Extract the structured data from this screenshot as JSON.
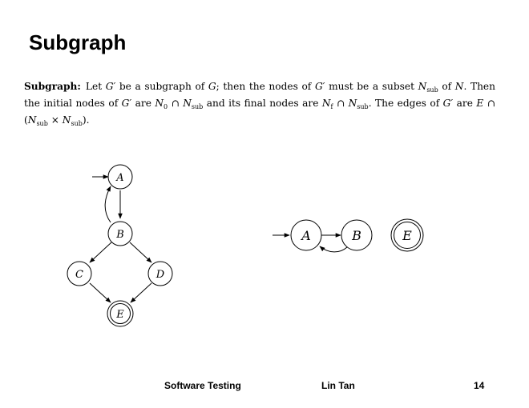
{
  "slide": {
    "title": "Subgraph",
    "page_number": "14"
  },
  "definition": {
    "term": "Subgraph:",
    "text_1": "Let ",
    "g_prime": "G′",
    "text_2": " be a subgraph of ",
    "g": "G",
    "text_3": "; then the nodes of ",
    "text_4": " must be a subset ",
    "n_sub_base": "N",
    "sub_label": "sub",
    "text_5": " of ",
    "n": "N",
    "text_6": ". Then the initial nodes of ",
    "text_7": " are ",
    "n0_base": "N",
    "n0_sub": "0",
    "cap": " ∩ ",
    "text_8": " and its final nodes are ",
    "nf_base": "N",
    "nf_sub": "f",
    "text_9": ". The edges of ",
    "text_10": " are ",
    "e": "E",
    "cap_open": " ∩ (",
    "times": " × ",
    "close": ")."
  },
  "graph_left": {
    "nodes": [
      "A",
      "B",
      "C",
      "D",
      "E"
    ],
    "edges": [
      "A→B",
      "B→A",
      "B→C",
      "B→D",
      "C→E",
      "D→E"
    ],
    "initial": [
      "A"
    ],
    "final": [
      "E"
    ]
  },
  "graph_right": {
    "nodes": [
      "A",
      "B",
      "E"
    ],
    "edges": [
      "A→B",
      "B→A"
    ],
    "initial": [
      "A"
    ],
    "final": [
      "E"
    ]
  },
  "footer": {
    "course": "Software Testing",
    "author": "Lin Tan"
  }
}
